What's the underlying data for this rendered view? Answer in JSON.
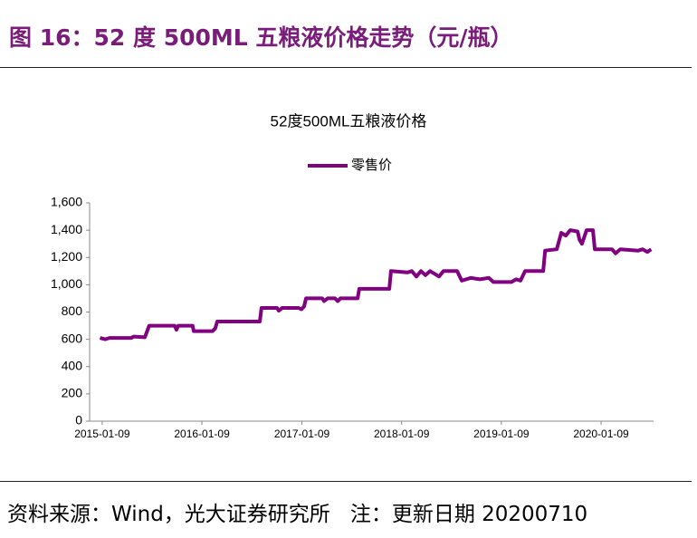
{
  "header": {
    "title": "图 16：52 度 500ML 五粮液价格走势（元/瓶）"
  },
  "chart_data": {
    "type": "line",
    "title": "52度500ML五粮液价格",
    "x": [
      "2015-01-01",
      "2015-01-20",
      "2015-02-05",
      "2015-04-25",
      "2015-05-05",
      "2015-06-14",
      "2015-06-30",
      "2015-10-01",
      "2015-10-08",
      "2015-10-14",
      "2015-12-06",
      "2015-12-10",
      "2016-02-17",
      "2016-02-27",
      "2016-03-05",
      "2016-08-08",
      "2016-08-14",
      "2016-10-10",
      "2016-10-16",
      "2016-10-29",
      "2016-12-28",
      "2017-01-07",
      "2017-01-17",
      "2017-01-24",
      "2017-03-24",
      "2017-03-31",
      "2017-04-13",
      "2017-05-10",
      "2017-05-20",
      "2017-05-30",
      "2017-08-01",
      "2017-08-07",
      "2017-11-25",
      "2017-12-01",
      "2018-01-30",
      "2018-02-15",
      "2018-03-04",
      "2018-03-21",
      "2018-04-06",
      "2018-04-23",
      "2018-05-26",
      "2018-06-11",
      "2018-07-31",
      "2018-08-17",
      "2018-09-19",
      "2018-10-22",
      "2018-11-24",
      "2018-12-11",
      "2019-02-15",
      "2019-03-04",
      "2019-03-20",
      "2019-04-06",
      "2019-06-11",
      "2019-06-18",
      "2019-07-31",
      "2019-08-16",
      "2019-09-02",
      "2019-09-18",
      "2019-10-15",
      "2019-10-22",
      "2019-10-31",
      "2019-11-17",
      "2019-12-10",
      "2019-12-17",
      "2020-02-18",
      "2020-03-02",
      "2020-03-19",
      "2020-05-24",
      "2020-06-09",
      "2020-06-26",
      "2020-07-10"
    ],
    "series": [
      {
        "name": "零售价",
        "color": "#800080",
        "values": [
          610,
          600,
          610,
          610,
          620,
          615,
          700,
          700,
          670,
          700,
          700,
          660,
          660,
          680,
          730,
          730,
          830,
          830,
          810,
          830,
          830,
          820,
          840,
          900,
          900,
          880,
          900,
          900,
          880,
          900,
          900,
          970,
          970,
          1100,
          1090,
          1100,
          1060,
          1100,
          1070,
          1100,
          1060,
          1100,
          1100,
          1030,
          1050,
          1040,
          1050,
          1020,
          1020,
          1040,
          1030,
          1100,
          1100,
          1250,
          1260,
          1380,
          1360,
          1400,
          1390,
          1330,
          1300,
          1400,
          1400,
          1260,
          1260,
          1230,
          1260,
          1250,
          1260,
          1240,
          1260
        ]
      }
    ],
    "xlim": [
      "2014-11-24",
      "2020-07-19"
    ],
    "xticks": [
      "2015-01-09",
      "2016-01-09",
      "2017-01-09",
      "2018-01-09",
      "2019-01-09",
      "2020-01-09"
    ],
    "ylim": [
      0,
      1600
    ],
    "yticks": [
      0,
      200,
      400,
      600,
      800,
      {
        "value": 1000,
        "label": "1,000"
      },
      {
        "value": 1200,
        "label": "1,200"
      },
      {
        "value": 1400,
        "label": "1,400"
      },
      {
        "value": 1600,
        "label": "1,600"
      }
    ],
    "legend": "top",
    "grid": false
  },
  "footer": {
    "source": "资料来源：Wind，光大证券研究所",
    "note": "注：更新日期 20200710"
  }
}
